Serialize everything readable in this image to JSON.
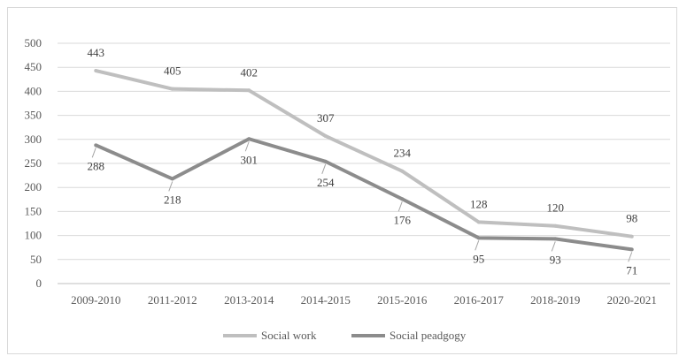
{
  "chart_data": {
    "type": "line",
    "categories": [
      "2009-2010",
      "2011-2012",
      "2013-2014",
      "2014-2015",
      "2015-2016",
      "2016-2017",
      "2018-2019",
      "2020-2021"
    ],
    "series": [
      {
        "name": "Social work",
        "values": [
          443,
          405,
          402,
          307,
          234,
          128,
          120,
          98
        ],
        "color": "#bfbfbf"
      },
      {
        "name": "Social peadgogy",
        "values": [
          288,
          218,
          301,
          254,
          176,
          95,
          93,
          71
        ],
        "color": "#8c8c8c"
      }
    ],
    "ylim": [
      0,
      500
    ],
    "yticks": [
      0,
      50,
      100,
      150,
      200,
      250,
      300,
      350,
      400,
      450,
      500
    ],
    "grid": true,
    "legend_position": "bottom",
    "title": "",
    "xlabel": "",
    "ylabel": ""
  }
}
